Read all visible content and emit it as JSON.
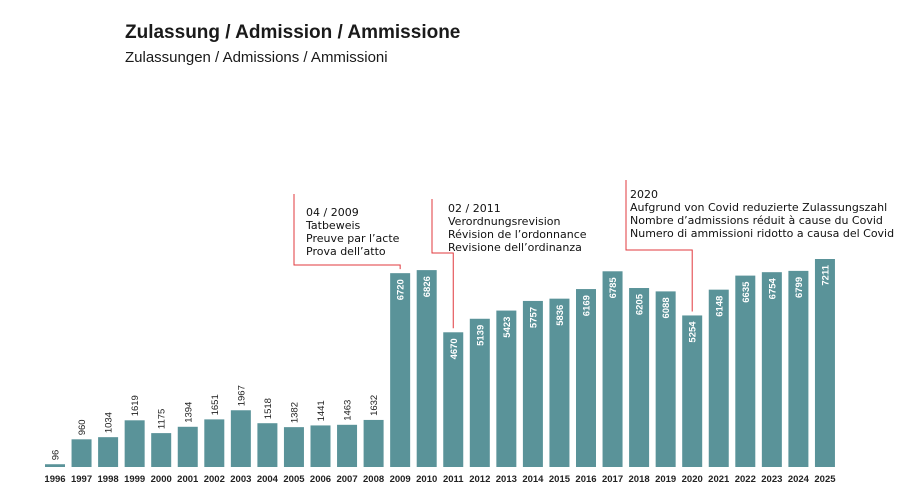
{
  "header": {
    "title": "Zulassung / Admission / Ammissione",
    "subtitle": "Zulassungen / Admissions / Ammissioni"
  },
  "colors": {
    "bar": "#5a9399",
    "bar_label": "#ffffff",
    "outside_label": "#222222",
    "annotation_line": "#e0393e"
  },
  "annotations": [
    {
      "year": "2009",
      "lines": [
        "04 / 2009",
        "Tatbeweis",
        "Preuve par l’acte",
        "Prova dell’atto"
      ]
    },
    {
      "year": "2011",
      "lines": [
        "02 / 2011",
        "Verordnungsrevision",
        "Révision de l’ordonnance",
        "Revisione dell’ordinanza"
      ]
    },
    {
      "year": "2020",
      "lines": [
        "2020",
        "Aufgrund von Covid reduzierte Zulassungszahl",
        "Nombre d’admissions réduit à cause du Covid",
        "Numero di ammissioni ridotto a causa del Covid"
      ]
    }
  ],
  "chart_data": {
    "type": "bar",
    "categories": [
      "1996",
      "1997",
      "1998",
      "1999",
      "2000",
      "2001",
      "2002",
      "2003",
      "2004",
      "2005",
      "2006",
      "2007",
      "2008",
      "2009",
      "2010",
      "2011",
      "2012",
      "2013",
      "2014",
      "2015",
      "2016",
      "2017",
      "2018",
      "2019",
      "2020",
      "2021",
      "2022",
      "2023",
      "2024",
      "2025"
    ],
    "values": [
      96,
      960,
      1034,
      1619,
      1175,
      1394,
      1651,
      1967,
      1518,
      1382,
      1441,
      1463,
      1632,
      6720,
      6826,
      4670,
      5139,
      5423,
      5757,
      5836,
      6169,
      6785,
      6205,
      6088,
      5254,
      6148,
      6635,
      6754,
      6799,
      7211
    ],
    "ylim": [
      0,
      7211
    ],
    "grid": false,
    "legend": "none"
  }
}
